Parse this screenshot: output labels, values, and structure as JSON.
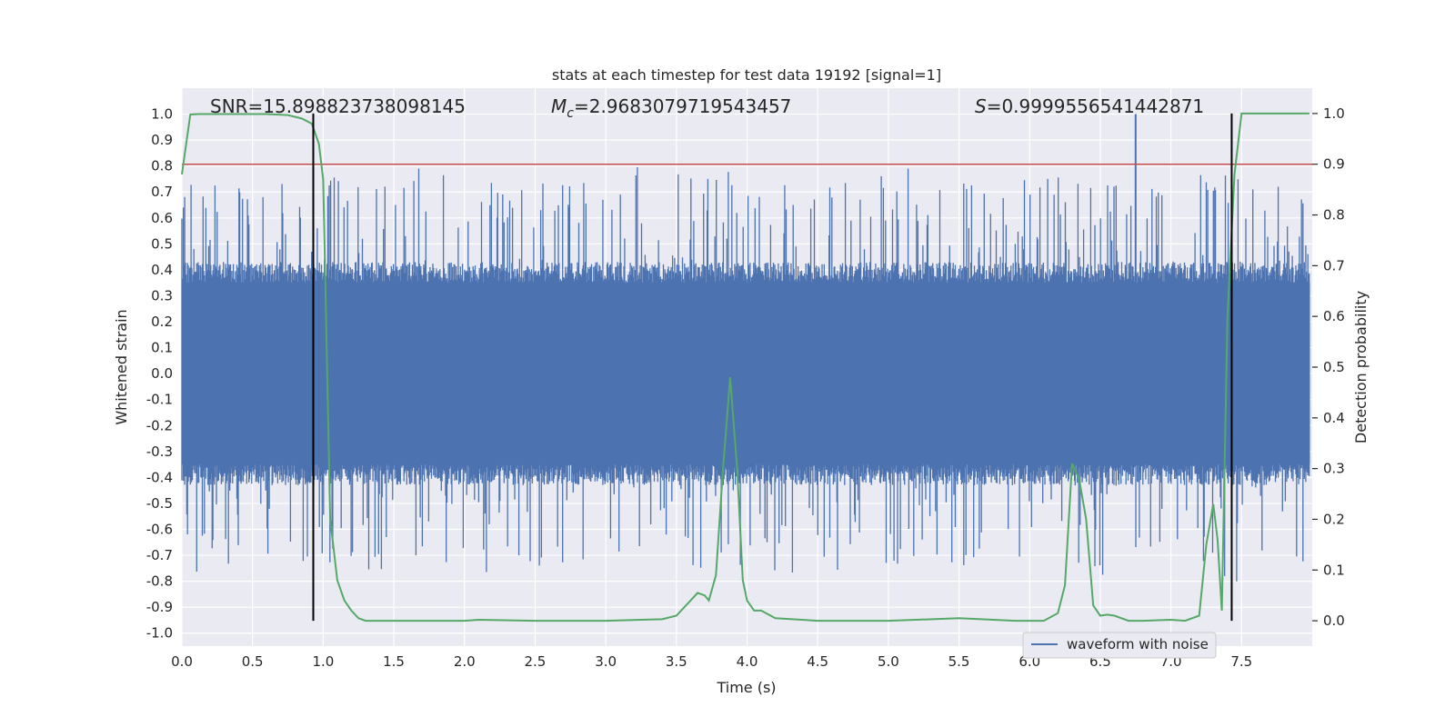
{
  "chart_data": {
    "type": "line",
    "title": "stats at each timestep for test data 19192 [signal=1]",
    "xlabel": "Time (s)",
    "ylabel_left": "Whitened strain",
    "ylabel_right": "Detection probability",
    "xlim": [
      0.0,
      8.0
    ],
    "ylim_left": [
      -1.05,
      1.1
    ],
    "ylim_right": [
      -0.05,
      1.05
    ],
    "x_ticks": [
      "0.0",
      "0.5",
      "1.0",
      "1.5",
      "2.0",
      "2.5",
      "3.0",
      "3.5",
      "4.0",
      "4.5",
      "5.0",
      "5.5",
      "6.0",
      "6.5",
      "7.0",
      "7.5"
    ],
    "y_left_ticks": [
      "1.0",
      "0.9",
      "0.8",
      "0.7",
      "0.6",
      "0.5",
      "0.4",
      "0.3",
      "0.2",
      "0.1",
      "0.0",
      "-0.1",
      "-0.2",
      "-0.3",
      "-0.4",
      "-0.5",
      "-0.6",
      "-0.7",
      "-0.8",
      "-0.9",
      "-1.0"
    ],
    "y_right_ticks": [
      "1.0",
      "0.9",
      "0.8",
      "0.7",
      "0.6",
      "0.5",
      "0.4",
      "0.3",
      "0.2",
      "0.1",
      "0.0"
    ],
    "grid": true,
    "legend": {
      "position": "lower-right",
      "entries": [
        "waveform with noise"
      ]
    },
    "annotations": {
      "snr": "SNR=15.898823738098145",
      "mc_symbol": "M",
      "mc_sub": "c",
      "mc_value": "=2.9683079719543457",
      "s_symbol": "S",
      "s_value": "=0.9999556541442871"
    },
    "threshold": {
      "axis": "right",
      "value": 0.9,
      "color": "#c44e52"
    },
    "vertical_markers": [
      0.93,
      7.43
    ],
    "series": [
      {
        "name": "waveform with noise",
        "axis": "left",
        "color": "#4c72b0",
        "kind": "noisy-waveform",
        "core_amplitude": 0.35,
        "peak_amplitude": 1.0,
        "sample_count": 1600
      },
      {
        "axis": "right",
        "color": "#55a868",
        "x": [
          0.0,
          0.06,
          0.12,
          0.2,
          0.4,
          0.6,
          0.75,
          0.85,
          0.92,
          0.97,
          1.0,
          1.05,
          1.1,
          1.15,
          1.2,
          1.25,
          1.3,
          1.5,
          2.0,
          2.1,
          2.5,
          3.0,
          3.25,
          3.4,
          3.5,
          3.6,
          3.65,
          3.7,
          3.73,
          3.78,
          3.83,
          3.88,
          3.93,
          3.97,
          4.0,
          4.05,
          4.1,
          4.2,
          4.5,
          5.0,
          5.5,
          5.9,
          6.1,
          6.2,
          6.25,
          6.3,
          6.35,
          6.4,
          6.45,
          6.5,
          6.55,
          6.6,
          6.7,
          6.8,
          7.0,
          7.1,
          7.2,
          7.25,
          7.3,
          7.33,
          7.36,
          7.4,
          7.45,
          7.5,
          7.6,
          7.98
        ],
        "y": [
          0.88,
          0.998,
          0.999,
          0.999,
          0.999,
          0.999,
          0.997,
          0.99,
          0.98,
          0.94,
          0.87,
          0.2,
          0.08,
          0.04,
          0.02,
          0.005,
          0.0,
          0.0,
          0.0,
          0.002,
          0.0,
          0.0,
          0.002,
          0.003,
          0.01,
          0.04,
          0.055,
          0.05,
          0.04,
          0.09,
          0.3,
          0.48,
          0.3,
          0.08,
          0.04,
          0.02,
          0.02,
          0.005,
          0.0,
          0.0,
          0.005,
          0.0,
          0.0,
          0.015,
          0.07,
          0.31,
          0.28,
          0.2,
          0.03,
          0.01,
          0.012,
          0.01,
          0.0,
          0.0,
          0.002,
          0.0,
          0.01,
          0.15,
          0.23,
          0.16,
          0.02,
          0.6,
          0.88,
          1.0,
          1.0,
          1.0
        ]
      }
    ]
  }
}
